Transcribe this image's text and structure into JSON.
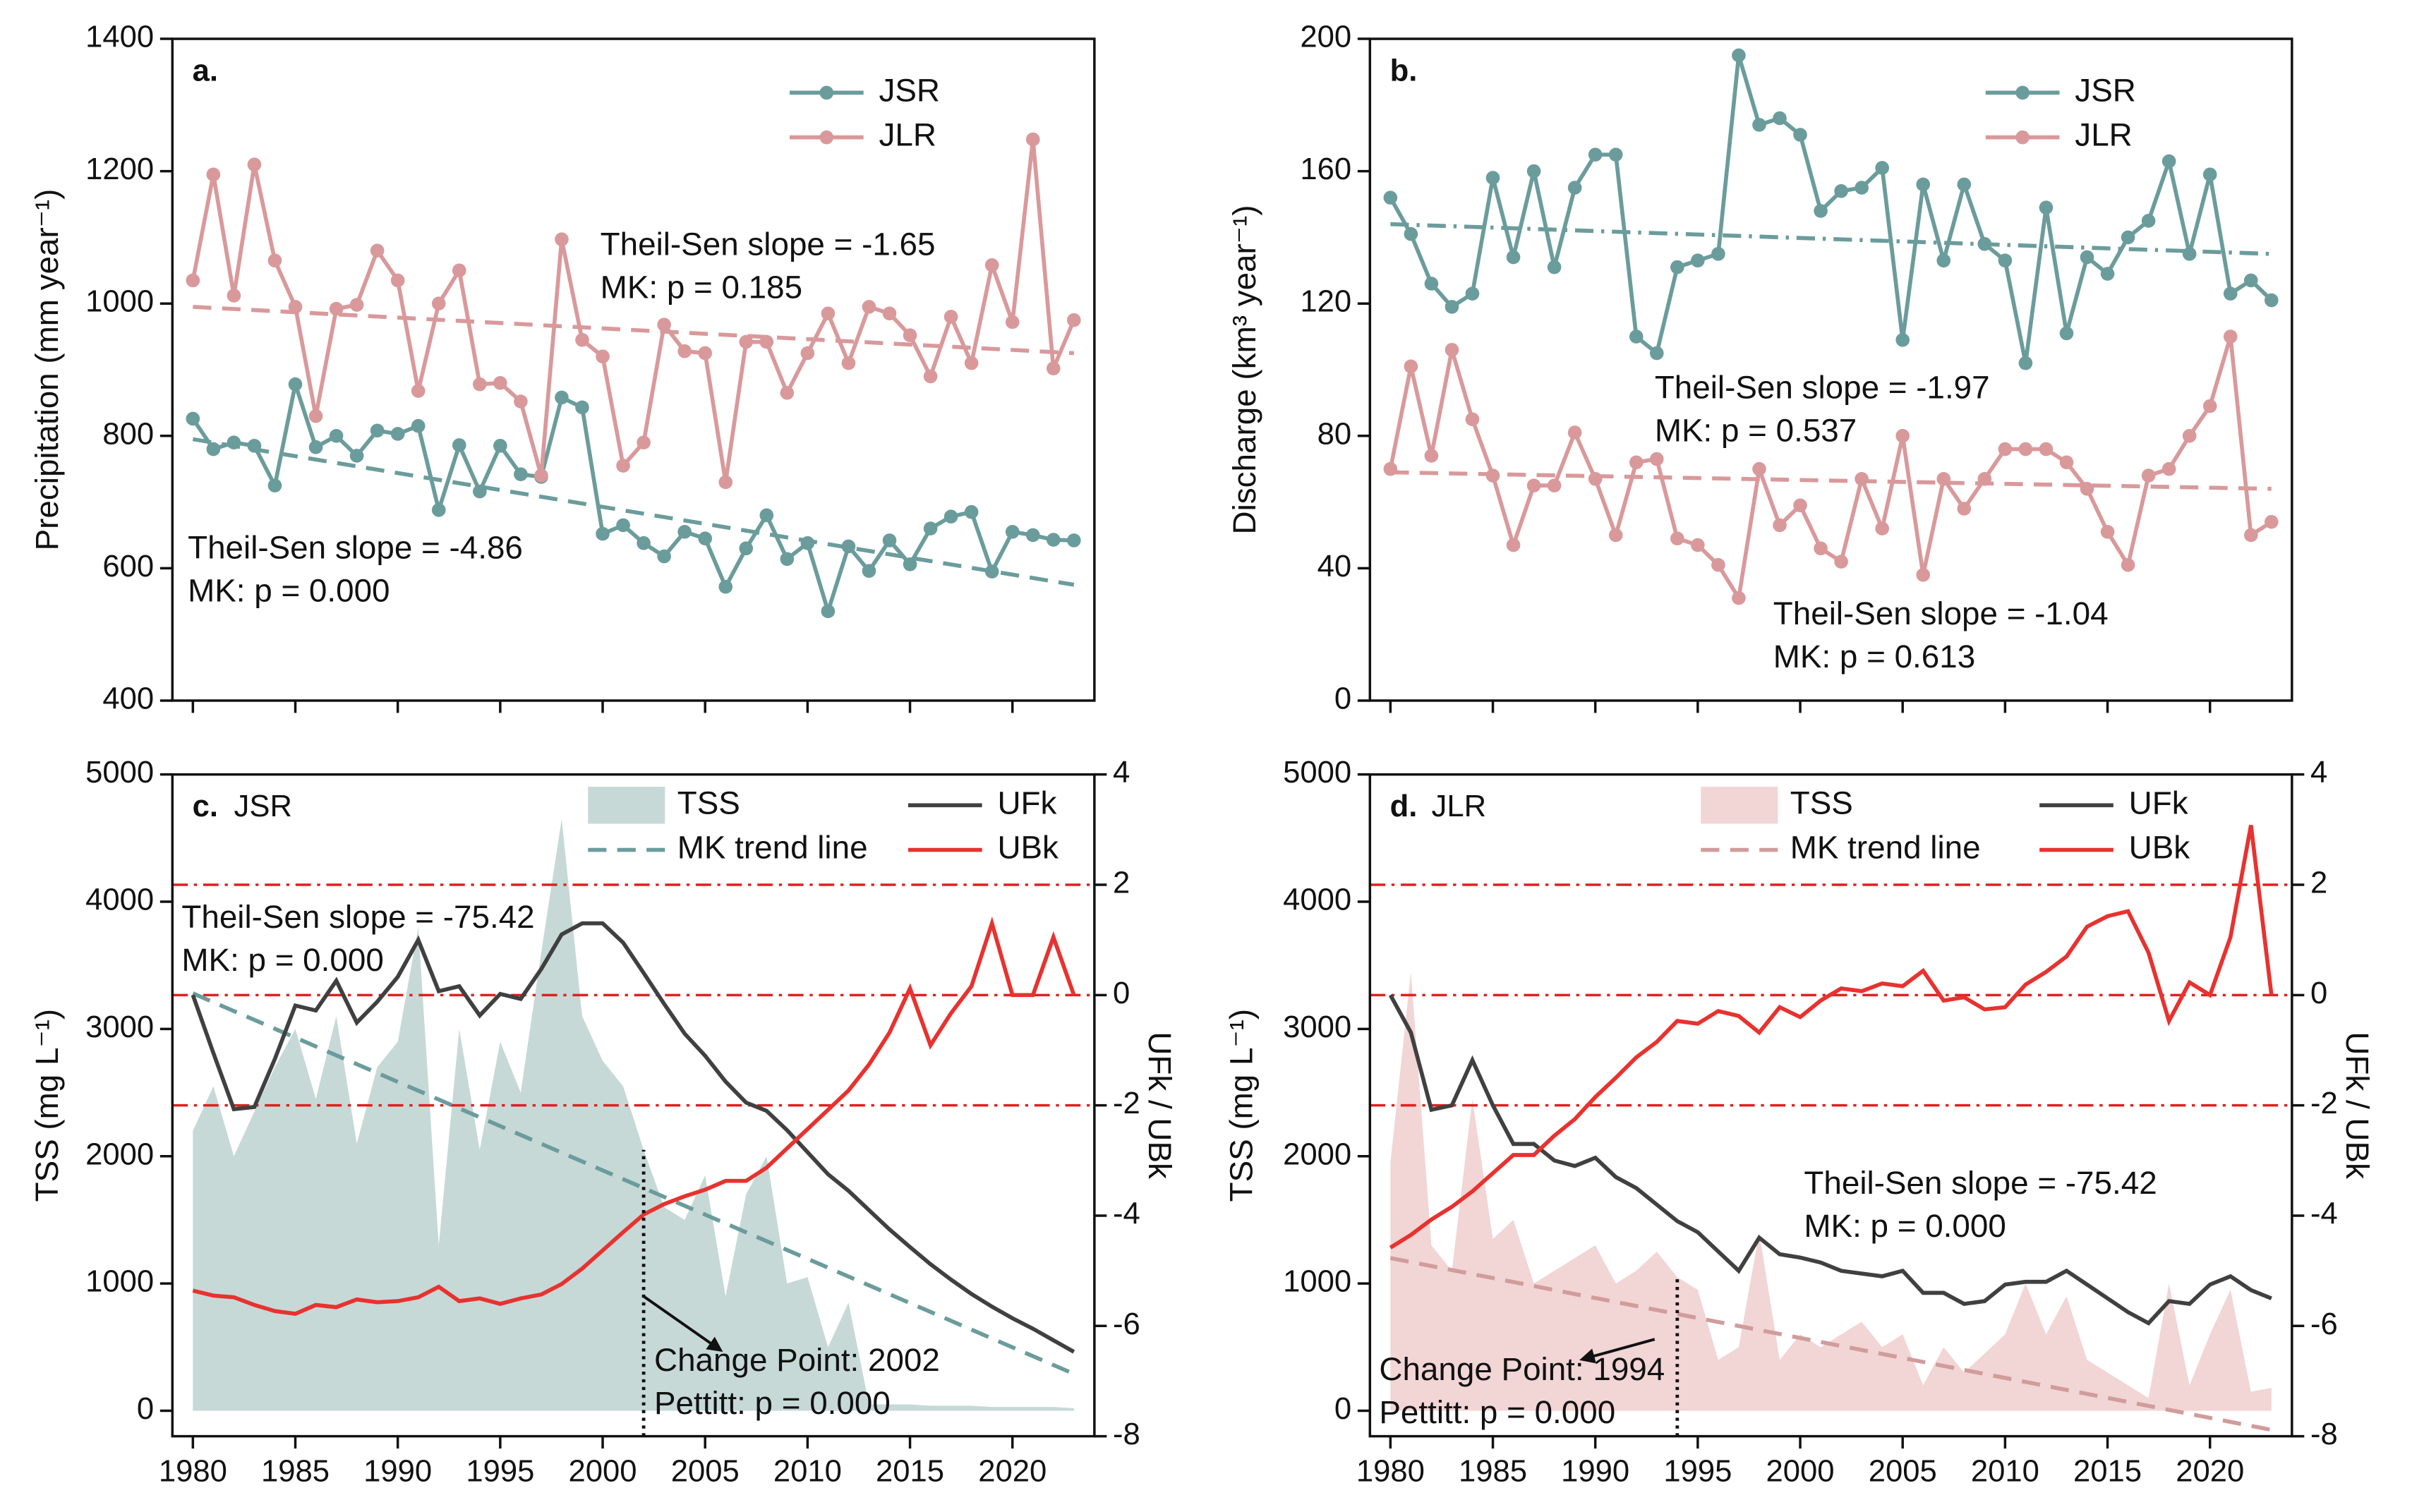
{
  "chart_data": [
    {
      "type": "line",
      "label": "a.",
      "ylabel": "Precipitation (mm year⁻¹)",
      "markers": true,
      "show_xtick_labels": false,
      "x": [
        1980,
        1981,
        1982,
        1983,
        1984,
        1985,
        1986,
        1987,
        1988,
        1989,
        1990,
        1991,
        1992,
        1993,
        1994,
        1995,
        1996,
        1997,
        1998,
        1999,
        2000,
        2001,
        2002,
        2003,
        2004,
        2005,
        2006,
        2007,
        2008,
        2009,
        2010,
        2011,
        2012,
        2013,
        2014,
        2015,
        2016,
        2017,
        2018,
        2019,
        2020,
        2021,
        2022,
        2023
      ],
      "xlim": [
        1979,
        2024
      ],
      "xticks": [
        1980,
        1985,
        1990,
        1995,
        2000,
        2005,
        2010,
        2015,
        2020
      ],
      "ylim": [
        400,
        1400
      ],
      "yticks": [
        400,
        600,
        800,
        1000,
        1200,
        1400
      ],
      "series": [
        {
          "name": "JSR",
          "color": "#6b9c9c",
          "values": [
            826,
            780,
            790,
            785,
            725,
            878,
            783,
            800,
            770,
            808,
            803,
            815,
            688,
            786,
            716,
            785,
            742,
            738,
            858,
            843,
            652,
            665,
            638,
            618,
            655,
            645,
            572,
            630,
            680,
            614,
            638,
            535,
            633,
            596,
            642,
            606,
            660,
            678,
            685,
            595,
            655,
            650,
            643,
            642
          ],
          "trend": {
            "x": [
              1980,
              2023
            ],
            "values": [
              795,
              575
            ],
            "dash": "dash"
          },
          "annotation": [
            "Theil-Sen slope = -4.86",
            "MK: p = 0.000"
          ]
        },
        {
          "name": "JLR",
          "color": "#d9999b",
          "values": [
            1035,
            1195,
            1012,
            1210,
            1065,
            995,
            830,
            992,
            998,
            1080,
            1035,
            868,
            1000,
            1050,
            878,
            880,
            852,
            740,
            1097,
            945,
            920,
            755,
            790,
            968,
            928,
            925,
            730,
            942,
            942,
            865,
            925,
            985,
            910,
            995,
            985,
            952,
            890,
            980,
            910,
            1058,
            972,
            1248,
            902,
            975
          ],
          "trend": {
            "x": [
              1980,
              2023
            ],
            "values": [
              995,
              925
            ],
            "dash": "dash"
          },
          "annotation": [
            "Theil-Sen slope = -1.65",
            "MK: p = 0.185"
          ]
        }
      ]
    },
    {
      "type": "line",
      "label": "b.",
      "ylabel": "Discharge (km³ year⁻¹)",
      "markers": true,
      "show_xtick_labels": false,
      "x": [
        1980,
        1981,
        1982,
        1983,
        1984,
        1985,
        1986,
        1987,
        1988,
        1989,
        1990,
        1991,
        1992,
        1993,
        1994,
        1995,
        1996,
        1997,
        1998,
        1999,
        2000,
        2001,
        2002,
        2003,
        2004,
        2005,
        2006,
        2007,
        2008,
        2009,
        2010,
        2011,
        2012,
        2013,
        2014,
        2015,
        2016,
        2017,
        2018,
        2019,
        2020,
        2021,
        2022,
        2023
      ],
      "xlim": [
        1979,
        2024
      ],
      "xticks": [
        1980,
        1985,
        1990,
        1995,
        2000,
        2005,
        2010,
        2015,
        2020
      ],
      "ylim": [
        0,
        200
      ],
      "yticks": [
        0,
        40,
        80,
        120,
        160,
        200
      ],
      "series": [
        {
          "name": "JSR",
          "color": "#6b9c9c",
          "values": [
            152,
            141,
            126,
            119,
            123,
            158,
            134,
            160,
            131,
            155,
            165,
            165,
            110,
            105,
            131,
            133,
            135,
            195,
            174,
            176,
            171,
            148,
            154,
            155,
            161,
            109,
            156,
            133,
            156,
            138,
            133,
            102,
            149,
            111,
            134,
            129,
            140,
            145,
            163,
            135,
            159,
            123,
            127,
            121
          ],
          "trend": {
            "x": [
              1980,
              2023
            ],
            "values": [
              144,
              135
            ],
            "dash": "dashdot"
          },
          "annotation": [
            "Theil-Sen slope = -1.97",
            "MK: p = 0.537"
          ]
        },
        {
          "name": "JLR",
          "color": "#d9999b",
          "values": [
            70,
            101,
            74,
            106,
            85,
            68,
            47,
            65,
            65,
            81,
            67,
            50,
            72,
            73,
            49,
            47,
            41,
            31,
            70,
            53,
            59,
            46,
            42,
            67,
            52,
            80,
            38,
            67,
            58,
            67,
            76,
            76,
            76,
            72,
            64,
            51,
            41,
            68,
            70,
            80,
            89,
            110,
            50,
            54
          ],
          "trend": {
            "x": [
              1980,
              2023
            ],
            "values": [
              69,
              64
            ],
            "dash": "dash"
          },
          "annotation": [
            "Theil-Sen slope = -1.04",
            "MK: p = 0.613"
          ]
        }
      ]
    },
    {
      "type": "mk",
      "label": "c.",
      "title": "JSR",
      "ylabel": "TSS (mg L⁻¹)",
      "y2label": "UFk / UBk",
      "show_xtick_labels": true,
      "x": [
        1980,
        1981,
        1982,
        1983,
        1984,
        1985,
        1986,
        1987,
        1988,
        1989,
        1990,
        1991,
        1992,
        1993,
        1994,
        1995,
        1996,
        1997,
        1998,
        1999,
        2000,
        2001,
        2002,
        2003,
        2004,
        2005,
        2006,
        2007,
        2008,
        2009,
        2010,
        2011,
        2012,
        2013,
        2014,
        2015,
        2016,
        2017,
        2018,
        2019,
        2020,
        2021,
        2022,
        2023
      ],
      "xlim": [
        1979,
        2024
      ],
      "xticks": [
        1980,
        1985,
        1990,
        1995,
        2000,
        2005,
        2010,
        2015,
        2020
      ],
      "ylim": [
        -200,
        5000
      ],
      "yticks": [
        0,
        1000,
        2000,
        3000,
        4000,
        5000
      ],
      "y2lim": [
        -8,
        4
      ],
      "y2ticks": [
        -8,
        -6,
        -4,
        -2,
        0,
        2,
        4
      ],
      "reference_lines": [
        2,
        0,
        -2
      ],
      "reference_color": "#e02020",
      "series": [
        {
          "name": "TSS",
          "type": "area",
          "color": "#c6d9d7",
          "values": [
            2200,
            2550,
            2000,
            2350,
            2700,
            3000,
            2450,
            3100,
            2100,
            2700,
            2900,
            3800,
            1300,
            3000,
            2050,
            2900,
            2500,
            3600,
            4650,
            3100,
            2750,
            2550,
            2050,
            1600,
            1500,
            1850,
            900,
            1700,
            2000,
            1000,
            1050,
            500,
            850,
            50,
            50,
            50,
            40,
            40,
            40,
            30,
            30,
            30,
            30,
            20
          ]
        },
        {
          "name": "MK trend line",
          "type": "trend",
          "color": "#6b9c9c",
          "x": [
            1980,
            2023
          ],
          "values": [
            3280,
            290
          ],
          "annotation": [
            "Theil-Sen slope = -75.42",
            "MK: p = 0.000"
          ]
        },
        {
          "name": "UFk",
          "axis": "y2",
          "color": "#404040",
          "values": [
            0,
            -1.05,
            -2.07,
            -2.03,
            -1.16,
            -0.19,
            -0.28,
            0.26,
            -0.5,
            -0.12,
            0.33,
            1.0,
            0.07,
            0.16,
            -0.37,
            0.02,
            -0.07,
            0.47,
            1.1,
            1.3,
            1.3,
            0.95,
            0.4,
            -0.16,
            -0.7,
            -1.1,
            -1.57,
            -1.95,
            -2.1,
            -2.45,
            -2.85,
            -3.25,
            -3.55,
            -3.9,
            -4.25,
            -4.57,
            -4.88,
            -5.16,
            -5.42,
            -5.65,
            -5.86,
            -6.05,
            -6.26,
            -6.47
          ]
        },
        {
          "name": "UBk",
          "axis": "y2",
          "color": "#e8322f",
          "values": [
            -5.36,
            -5.45,
            -5.48,
            -5.62,
            -5.73,
            -5.78,
            -5.62,
            -5.66,
            -5.52,
            -5.57,
            -5.55,
            -5.48,
            -5.29,
            -5.55,
            -5.5,
            -5.6,
            -5.5,
            -5.43,
            -5.24,
            -4.96,
            -4.63,
            -4.3,
            -3.98,
            -3.79,
            -3.65,
            -3.53,
            -3.37,
            -3.37,
            -3.13,
            -2.78,
            -2.43,
            -2.08,
            -1.73,
            -1.26,
            -0.68,
            0.12,
            -0.91,
            -0.33,
            0.16,
            1.3,
            0,
            0,
            1.05,
            0
          ]
        }
      ],
      "change_point": {
        "x": 2002,
        "top": 2050,
        "color": "#6b9c9c",
        "label": [
          "Change Point: 2002",
          "Pettitt: p = 0.000"
        ]
      }
    },
    {
      "type": "mk",
      "label": "d.",
      "title": "JLR",
      "ylabel": "TSS (mg L⁻¹)",
      "y2label": "UFk / UBk",
      "show_xtick_labels": true,
      "x": [
        1980,
        1981,
        1982,
        1983,
        1984,
        1985,
        1986,
        1987,
        1988,
        1989,
        1990,
        1991,
        1992,
        1993,
        1994,
        1995,
        1996,
        1997,
        1998,
        1999,
        2000,
        2001,
        2002,
        2003,
        2004,
        2005,
        2006,
        2007,
        2008,
        2009,
        2010,
        2011,
        2012,
        2013,
        2014,
        2015,
        2016,
        2017,
        2018,
        2019,
        2020,
        2021,
        2022,
        2023
      ],
      "xlim": [
        1979,
        2024
      ],
      "xticks": [
        1980,
        1985,
        1990,
        1995,
        2000,
        2005,
        2010,
        2015,
        2020
      ],
      "ylim": [
        -200,
        5000
      ],
      "yticks": [
        0,
        1000,
        2000,
        3000,
        4000,
        5000
      ],
      "y2lim": [
        -8,
        4
      ],
      "y2ticks": [
        -8,
        -6,
        -4,
        -2,
        0,
        2,
        4
      ],
      "reference_lines": [
        2,
        0,
        -2
      ],
      "reference_color": "#e02020",
      "series": [
        {
          "name": "TSS",
          "type": "area",
          "color": "#f2d5d5",
          "values": [
            1950,
            3450,
            1300,
            1100,
            2450,
            1350,
            1500,
            1000,
            1100,
            1200,
            1300,
            1000,
            1100,
            1250,
            1050,
            950,
            400,
            500,
            1400,
            400,
            600,
            500,
            600,
            700,
            500,
            600,
            200,
            500,
            300,
            450,
            600,
            1000,
            600,
            900,
            400,
            300,
            200,
            100,
            1000,
            200,
            600,
            950,
            150,
            180
          ]
        },
        {
          "name": "MK trend line",
          "type": "trend",
          "color": "#d19c9c",
          "x": [
            1980,
            2023
          ],
          "values": [
            1200,
            -150
          ],
          "annotation": [
            "Theil-Sen slope = -75.42",
            "MK: p = 0.000"
          ]
        },
        {
          "name": "UFk",
          "axis": "y2",
          "color": "#404040",
          "values": [
            0,
            -0.68,
            -2.08,
            -2.0,
            -1.18,
            -2.0,
            -2.7,
            -2.7,
            -3.0,
            -3.1,
            -2.95,
            -3.3,
            -3.5,
            -3.8,
            -4.1,
            -4.3,
            -4.65,
            -5.0,
            -4.4,
            -4.7,
            -4.76,
            -4.85,
            -5.0,
            -5.05,
            -5.1,
            -5.0,
            -5.4,
            -5.4,
            -5.6,
            -5.55,
            -5.25,
            -5.2,
            -5.2,
            -5.0,
            -5.25,
            -5.5,
            -5.75,
            -5.95,
            -5.55,
            -5.6,
            -5.25,
            -5.1,
            -5.35,
            -5.5
          ]
        },
        {
          "name": "UBk",
          "axis": "y2",
          "color": "#e8322f",
          "values": [
            -4.58,
            -4.35,
            -4.07,
            -3.84,
            -3.56,
            -3.23,
            -2.9,
            -2.9,
            -2.55,
            -2.25,
            -1.85,
            -1.5,
            -1.13,
            -0.85,
            -0.47,
            -0.52,
            -0.29,
            -0.38,
            -0.68,
            -0.22,
            -0.4,
            -0.1,
            0.12,
            0.07,
            0.21,
            0.16,
            0.44,
            -0.1,
            -0.04,
            -0.26,
            -0.22,
            0.19,
            0.42,
            0.7,
            1.24,
            1.43,
            1.52,
            0.77,
            -0.47,
            0.23,
            0,
            1.05,
            3.08,
            0
          ]
        }
      ],
      "change_point": {
        "x": 1994,
        "top": 1050,
        "color": "#d19c9c",
        "label": [
          "Change Point: 1994",
          "Pettitt: p = 0.000"
        ]
      }
    }
  ]
}
